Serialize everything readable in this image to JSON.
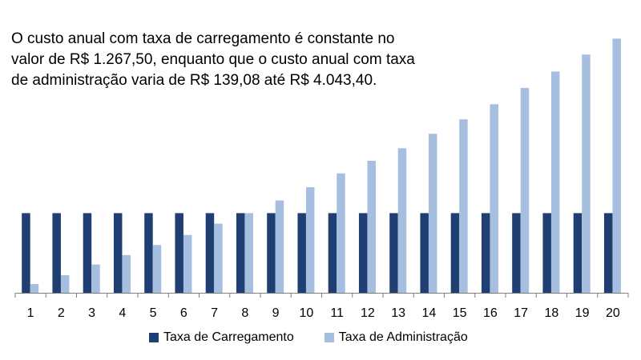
{
  "annotation": {
    "line1": "O custo anual com taxa de carregamento é constante no",
    "line2": "valor de R$ 1.267,50, enquanto que o custo anual com taxa",
    "line3": "de administração varia de R$ 139,08 até R$ 4.043,40."
  },
  "legend": {
    "series1": "Taxa de Carregamento",
    "series2": "Taxa de Administração"
  },
  "colors": {
    "carregamento": "#1f3f73",
    "administracao": "#a6bfe0",
    "axis": "#7f7f7f"
  },
  "chart_data": {
    "type": "bar",
    "categories": [
      "1",
      "2",
      "3",
      "4",
      "5",
      "6",
      "7",
      "8",
      "9",
      "10",
      "11",
      "12",
      "13",
      "14",
      "15",
      "16",
      "17",
      "18",
      "19",
      "20"
    ],
    "series": [
      {
        "name": "Taxa de Carregamento",
        "values": [
          1267.5,
          1267.5,
          1267.5,
          1267.5,
          1267.5,
          1267.5,
          1267.5,
          1267.5,
          1267.5,
          1267.5,
          1267.5,
          1267.5,
          1267.5,
          1267.5,
          1267.5,
          1267.5,
          1267.5,
          1267.5,
          1267.5,
          1267.5
        ]
      },
      {
        "name": "Taxa de Administração",
        "values": [
          139.08,
          280,
          450,
          600,
          760,
          920,
          1100,
          1267.5,
          1470,
          1680,
          1900,
          2100,
          2300,
          2530,
          2760,
          3000,
          3260,
          3520,
          3790,
          4043.4
        ]
      }
    ],
    "ylim": [
      0,
      4200
    ],
    "grid": false,
    "legend_position": "bottom"
  }
}
